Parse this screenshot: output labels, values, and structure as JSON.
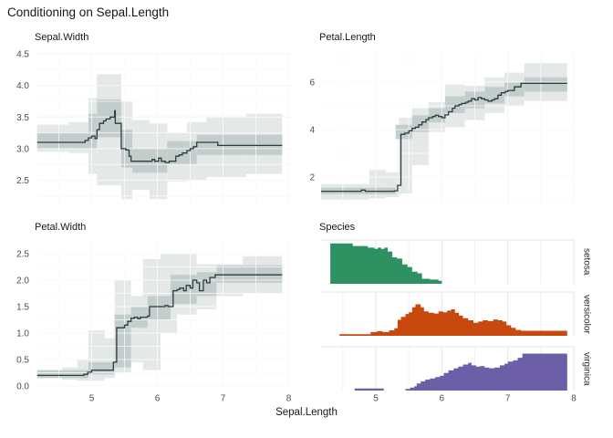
{
  "title": "Conditioning on Sepal.Length",
  "x_axis": {
    "label": "Sepal.Length",
    "ticks": [
      5,
      6,
      7,
      8
    ],
    "tick_labels": [
      "5",
      "6",
      "7",
      "8"
    ],
    "domain": [
      4.17,
      8.03
    ]
  },
  "colors": {
    "background": "#ffffff",
    "grid_major": "#e6e6e6",
    "grid_minor": "#f2f2f2",
    "grid_over_band": "rgba(255,255,255,0.7)",
    "step_line": "#2a3c40",
    "band_outer": "#e4e9e8",
    "band_inner": "#c3cdcb",
    "tick_text": "#4d4d4d",
    "setosa": "#2D9162",
    "versicolor": "#C8490E",
    "virginica": "#6C5FA7"
  },
  "chart_data": [
    {
      "type": "line",
      "title": "Sepal.Width",
      "xlabel": "Sepal.Length",
      "y_tick_values": [
        2.5,
        3.0,
        3.5,
        4.0,
        4.5
      ],
      "y_tick_labels": [
        "2.5",
        "3.0",
        "3.5",
        "4.0",
        "4.5"
      ],
      "y_domain": [
        2.09,
        4.53
      ],
      "line_steps": [
        [
          4.17,
          3.1
        ],
        [
          4.9,
          3.13
        ],
        [
          4.95,
          3.17
        ],
        [
          5.0,
          3.2
        ],
        [
          5.05,
          3.16
        ],
        [
          5.08,
          3.3
        ],
        [
          5.12,
          3.4
        ],
        [
          5.18,
          3.44
        ],
        [
          5.22,
          3.47
        ],
        [
          5.28,
          3.5
        ],
        [
          5.33,
          3.5
        ],
        [
          5.35,
          3.6
        ],
        [
          5.36,
          3.4
        ],
        [
          5.42,
          3.4
        ],
        [
          5.45,
          3.0
        ],
        [
          5.52,
          2.98
        ],
        [
          5.57,
          2.88
        ],
        [
          5.6,
          2.8
        ],
        [
          5.88,
          2.8
        ],
        [
          5.92,
          2.83
        ],
        [
          5.96,
          2.8
        ],
        [
          6.02,
          2.85
        ],
        [
          6.06,
          2.8
        ],
        [
          6.12,
          2.78
        ],
        [
          6.18,
          2.8
        ],
        [
          6.22,
          2.8
        ],
        [
          6.28,
          2.88
        ],
        [
          6.33,
          2.9
        ],
        [
          6.38,
          2.93
        ],
        [
          6.45,
          2.97
        ],
        [
          6.5,
          3.0
        ],
        [
          6.55,
          3.03
        ],
        [
          6.6,
          3.1
        ],
        [
          6.88,
          3.1
        ],
        [
          6.92,
          3.05
        ],
        [
          7.9,
          3.05
        ]
      ],
      "outer_band": [
        [
          4.17,
          4.65,
          2.95,
          3.38
        ],
        [
          4.65,
          4.95,
          2.93,
          3.42
        ],
        [
          4.95,
          5.08,
          2.6,
          3.8
        ],
        [
          5.08,
          5.45,
          2.42,
          4.18
        ],
        [
          5.45,
          5.62,
          2.2,
          3.75
        ],
        [
          5.62,
          5.88,
          2.35,
          3.45
        ],
        [
          5.88,
          6.15,
          2.2,
          3.4
        ],
        [
          6.15,
          6.45,
          2.48,
          3.25
        ],
        [
          6.45,
          6.75,
          2.5,
          3.42
        ],
        [
          6.75,
          7.35,
          2.55,
          3.5
        ],
        [
          7.35,
          7.9,
          2.6,
          3.55
        ]
      ],
      "inner_band": [
        [
          4.17,
          4.95,
          3.0,
          3.25
        ],
        [
          4.95,
          5.08,
          3.0,
          3.55
        ],
        [
          5.08,
          5.45,
          3.18,
          3.78
        ],
        [
          5.45,
          5.62,
          2.7,
          3.3
        ],
        [
          5.62,
          6.15,
          2.62,
          3.0
        ],
        [
          6.15,
          6.6,
          2.75,
          3.12
        ],
        [
          6.6,
          7.9,
          2.9,
          3.22
        ]
      ]
    },
    {
      "type": "line",
      "title": "Petal.Length",
      "xlabel": "Sepal.Length",
      "y_tick_values": [
        2,
        4,
        6
      ],
      "y_tick_labels": [
        "2",
        "4",
        "6"
      ],
      "y_domain": [
        0.77,
        7.27
      ],
      "line_steps": [
        [
          4.17,
          1.4
        ],
        [
          4.78,
          1.45
        ],
        [
          4.84,
          1.4
        ],
        [
          5.28,
          1.42
        ],
        [
          5.33,
          1.65
        ],
        [
          5.38,
          3.8
        ],
        [
          5.44,
          3.85
        ],
        [
          5.5,
          3.95
        ],
        [
          5.55,
          4.05
        ],
        [
          5.6,
          4.1
        ],
        [
          5.65,
          4.2
        ],
        [
          5.7,
          4.32
        ],
        [
          5.76,
          4.42
        ],
        [
          5.8,
          4.5
        ],
        [
          5.86,
          4.55
        ],
        [
          5.9,
          4.6
        ],
        [
          5.95,
          4.55
        ],
        [
          6.0,
          4.5
        ],
        [
          6.05,
          4.62
        ],
        [
          6.1,
          4.75
        ],
        [
          6.16,
          4.9
        ],
        [
          6.2,
          5.0
        ],
        [
          6.26,
          5.05
        ],
        [
          6.3,
          5.1
        ],
        [
          6.36,
          5.15
        ],
        [
          6.4,
          5.2
        ],
        [
          6.45,
          5.3
        ],
        [
          6.5,
          5.25
        ],
        [
          6.55,
          5.35
        ],
        [
          6.6,
          5.3
        ],
        [
          6.65,
          5.25
        ],
        [
          6.7,
          5.2
        ],
        [
          6.76,
          5.25
        ],
        [
          6.8,
          5.3
        ],
        [
          6.85,
          5.45
        ],
        [
          6.9,
          5.55
        ],
        [
          6.96,
          5.6
        ],
        [
          7.0,
          5.65
        ],
        [
          7.1,
          5.8
        ],
        [
          7.2,
          5.95
        ],
        [
          7.9,
          5.95
        ]
      ],
      "outer_band": [
        [
          4.17,
          4.9,
          1.05,
          1.7
        ],
        [
          4.9,
          5.15,
          1.1,
          2.3
        ],
        [
          5.15,
          5.35,
          1.15,
          2.2
        ],
        [
          5.35,
          5.55,
          1.3,
          4.5
        ],
        [
          5.55,
          5.8,
          2.5,
          4.9
        ],
        [
          5.8,
          6.05,
          3.9,
          5.15
        ],
        [
          6.05,
          6.35,
          4.1,
          5.9
        ],
        [
          6.35,
          6.65,
          4.4,
          5.85
        ],
        [
          6.65,
          6.95,
          4.7,
          6.2
        ],
        [
          6.95,
          7.25,
          5.0,
          6.4
        ],
        [
          7.25,
          7.9,
          5.2,
          6.8
        ]
      ],
      "inner_band": [
        [
          4.17,
          5.3,
          1.28,
          1.55
        ],
        [
          5.3,
          5.55,
          3.6,
          4.2
        ],
        [
          5.55,
          5.8,
          3.9,
          4.6
        ],
        [
          5.8,
          6.05,
          4.3,
          4.9
        ],
        [
          6.05,
          6.35,
          4.7,
          5.4
        ],
        [
          6.35,
          6.65,
          4.9,
          5.6
        ],
        [
          6.65,
          6.95,
          5.1,
          5.8
        ],
        [
          6.95,
          7.25,
          5.4,
          6.0
        ],
        [
          7.25,
          7.9,
          5.6,
          6.2
        ]
      ]
    },
    {
      "type": "line",
      "title": "Petal.Width",
      "xlabel": "Sepal.Length",
      "y_tick_values": [
        0.0,
        0.5,
        1.0,
        1.5,
        2.0,
        2.5
      ],
      "y_tick_labels": [
        "0.0",
        "0.5",
        "1.0",
        "1.5",
        "2.0",
        "2.5"
      ],
      "y_domain": [
        -0.02,
        2.69
      ],
      "line_steps": [
        [
          4.17,
          0.2
        ],
        [
          4.88,
          0.22
        ],
        [
          4.94,
          0.26
        ],
        [
          5.0,
          0.3
        ],
        [
          5.3,
          0.3
        ],
        [
          5.33,
          0.45
        ],
        [
          5.38,
          1.1
        ],
        [
          5.5,
          1.15
        ],
        [
          5.55,
          1.22
        ],
        [
          5.6,
          1.28
        ],
        [
          5.65,
          1.3
        ],
        [
          5.7,
          1.27
        ],
        [
          5.74,
          1.3
        ],
        [
          5.85,
          1.32
        ],
        [
          5.88,
          1.5
        ],
        [
          6.12,
          1.52
        ],
        [
          6.16,
          1.5
        ],
        [
          6.24,
          1.8
        ],
        [
          6.3,
          1.82
        ],
        [
          6.34,
          1.85
        ],
        [
          6.4,
          1.8
        ],
        [
          6.44,
          1.9
        ],
        [
          6.5,
          1.85
        ],
        [
          6.54,
          2.0
        ],
        [
          6.6,
          1.95
        ],
        [
          6.64,
          1.8
        ],
        [
          6.7,
          2.0
        ],
        [
          6.75,
          1.95
        ],
        [
          6.8,
          2.05
        ],
        [
          6.88,
          2.1
        ],
        [
          7.9,
          2.1
        ]
      ],
      "outer_band": [
        [
          4.55,
          4.78,
          0.12,
          0.35
        ],
        [
          4.78,
          4.95,
          0.1,
          0.5
        ],
        [
          4.95,
          5.2,
          0.1,
          1.05
        ],
        [
          5.2,
          5.35,
          0.15,
          0.9
        ],
        [
          5.35,
          5.6,
          0.25,
          2.0
        ],
        [
          5.6,
          5.78,
          0.45,
          1.7
        ],
        [
          5.78,
          6.05,
          0.3,
          2.4
        ],
        [
          6.05,
          6.3,
          1.0,
          2.5
        ],
        [
          6.3,
          6.6,
          1.35,
          2.5
        ],
        [
          6.6,
          6.9,
          1.45,
          2.3
        ],
        [
          6.9,
          7.3,
          1.7,
          2.3
        ],
        [
          7.3,
          7.9,
          1.75,
          2.45
        ]
      ],
      "inner_band": [
        [
          4.17,
          4.95,
          0.15,
          0.3
        ],
        [
          4.95,
          5.35,
          0.22,
          0.45
        ],
        [
          5.35,
          5.6,
          0.35,
          1.35
        ],
        [
          5.6,
          5.85,
          1.1,
          1.5
        ],
        [
          5.85,
          6.2,
          1.25,
          1.7
        ],
        [
          6.2,
          6.6,
          1.55,
          2.1
        ],
        [
          6.6,
          6.9,
          1.7,
          2.15
        ],
        [
          6.9,
          7.9,
          1.95,
          2.28
        ]
      ]
    },
    {
      "type": "area",
      "title": "Species",
      "xlabel": "Sepal.Length",
      "note": "stacked facet strips, height = relative frequency (fraction of strip height)",
      "series": [
        {
          "name": "setosa",
          "color": "#2D9162",
          "steps": [
            [
              4.31,
              0.96
            ],
            [
              4.65,
              0.9
            ],
            [
              4.88,
              0.86
            ],
            [
              4.98,
              0.83
            ],
            [
              5.03,
              0.86
            ],
            [
              5.08,
              0.83
            ],
            [
              5.13,
              0.86
            ],
            [
              5.18,
              0.77
            ],
            [
              5.25,
              0.63
            ],
            [
              5.32,
              0.6
            ],
            [
              5.4,
              0.46
            ],
            [
              5.48,
              0.4
            ],
            [
              5.55,
              0.29
            ],
            [
              5.63,
              0.25
            ],
            [
              5.7,
              0.12
            ],
            [
              5.82,
              0.1
            ],
            [
              5.95,
              0.07
            ],
            [
              6.0,
              0
            ]
          ]
        },
        {
          "name": "versicolor",
          "color": "#C8490E",
          "steps": [
            [
              4.45,
              0.04
            ],
            [
              4.92,
              0.09
            ],
            [
              5.02,
              0.11
            ],
            [
              5.1,
              0.09
            ],
            [
              5.2,
              0.13
            ],
            [
              5.28,
              0.18
            ],
            [
              5.33,
              0.38
            ],
            [
              5.38,
              0.45
            ],
            [
              5.45,
              0.52
            ],
            [
              5.5,
              0.56
            ],
            [
              5.55,
              0.68
            ],
            [
              5.6,
              0.75
            ],
            [
              5.68,
              0.68
            ],
            [
              5.73,
              0.58
            ],
            [
              5.8,
              0.55
            ],
            [
              5.88,
              0.53
            ],
            [
              5.95,
              0.58
            ],
            [
              6.02,
              0.56
            ],
            [
              6.08,
              0.6
            ],
            [
              6.14,
              0.63
            ],
            [
              6.2,
              0.55
            ],
            [
              6.26,
              0.48
            ],
            [
              6.32,
              0.42
            ],
            [
              6.4,
              0.37
            ],
            [
              6.48,
              0.31
            ],
            [
              6.55,
              0.34
            ],
            [
              6.62,
              0.37
            ],
            [
              6.7,
              0.35
            ],
            [
              6.78,
              0.39
            ],
            [
              6.85,
              0.37
            ],
            [
              6.92,
              0.34
            ],
            [
              6.98,
              0.25
            ],
            [
              7.05,
              0.19
            ],
            [
              7.12,
              0.14
            ],
            [
              7.2,
              0.12
            ],
            [
              7.88,
              0.12
            ],
            [
              7.9,
              0
            ]
          ]
        },
        {
          "name": "virginica",
          "color": "#6C5FA7",
          "steps": [
            [
              4.68,
              0.05
            ],
            [
              5.12,
              0
            ],
            [
              5.45,
              0.04
            ],
            [
              5.52,
              0.07
            ],
            [
              5.58,
              0.1
            ],
            [
              5.62,
              0.17
            ],
            [
              5.68,
              0.22
            ],
            [
              5.75,
              0.26
            ],
            [
              5.82,
              0.29
            ],
            [
              5.9,
              0.32
            ],
            [
              5.97,
              0.35
            ],
            [
              6.03,
              0.42
            ],
            [
              6.1,
              0.48
            ],
            [
              6.18,
              0.53
            ],
            [
              6.25,
              0.57
            ],
            [
              6.32,
              0.62
            ],
            [
              6.4,
              0.66
            ],
            [
              6.45,
              0.6
            ],
            [
              6.52,
              0.57
            ],
            [
              6.58,
              0.58
            ],
            [
              6.65,
              0.55
            ],
            [
              6.72,
              0.53
            ],
            [
              6.8,
              0.55
            ],
            [
              6.88,
              0.6
            ],
            [
              6.95,
              0.64
            ],
            [
              7.0,
              0.69
            ],
            [
              7.08,
              0.72
            ],
            [
              7.15,
              0.78
            ],
            [
              7.22,
              0.88
            ],
            [
              7.88,
              0.88
            ],
            [
              7.9,
              0
            ]
          ]
        }
      ]
    }
  ]
}
